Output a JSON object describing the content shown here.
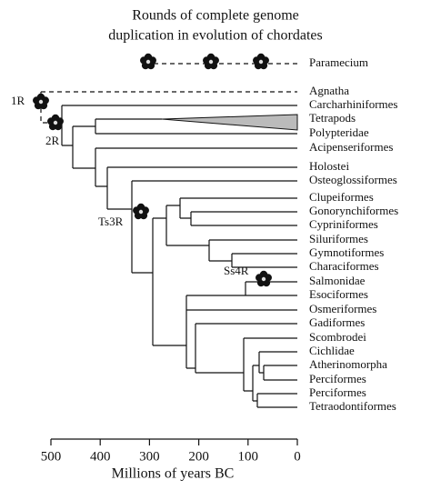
{
  "title": [
    "Rounds of complete genome",
    "duplication in evolution of chordates"
  ],
  "taxa": [
    "Paramecium",
    "Agnatha",
    "Carcharhiniformes",
    "Tetrapods",
    "Polypteridae",
    "Acipenseriformes",
    "Holostei",
    "Osteoglossiformes",
    "Clupeiformes",
    "Gonorynchiformes",
    "Cypriniformes",
    "Siluriformes",
    "Gymnotiformes",
    "Characiformes",
    "Salmonidae",
    "Esociformes",
    "Osmeriformes",
    "Gadiformes",
    "Scombrodei",
    "Cichlidae",
    "Atherinomorpha",
    "Perciformes",
    "Perciformes",
    "Tetraodontiformes"
  ],
  "events": [
    "1R",
    "2R",
    "Ts3R",
    "Ss4R"
  ],
  "axis": {
    "label": "Millions of years BC",
    "ticks": [
      500,
      400,
      300,
      200,
      100,
      0
    ]
  }
}
